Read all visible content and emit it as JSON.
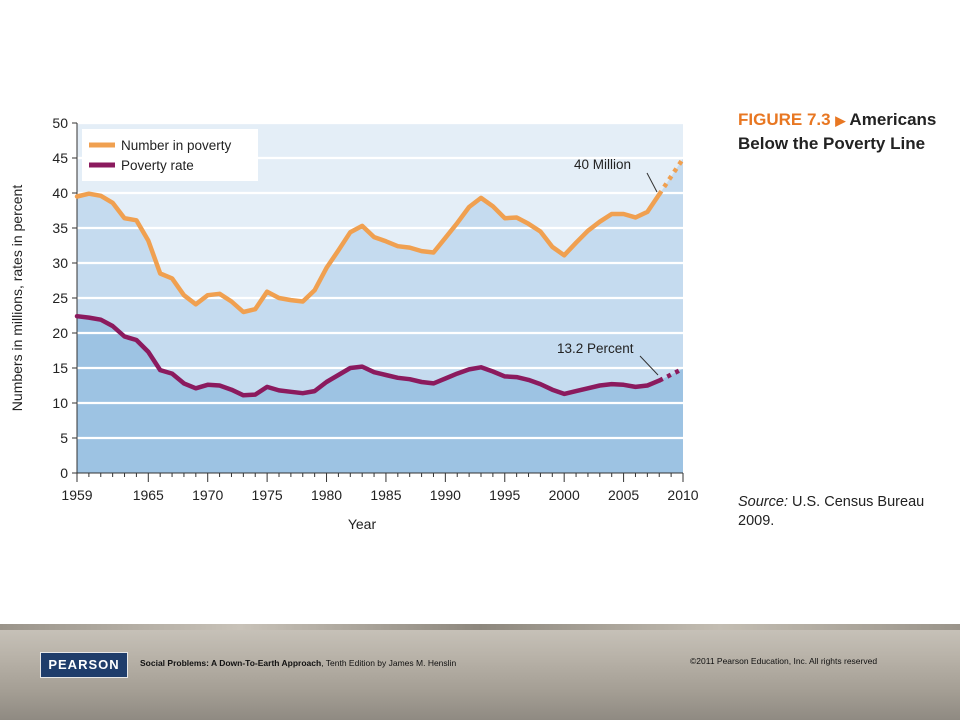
{
  "figure": {
    "number": "FIGURE 7.3",
    "arrow": "▶",
    "title": "Americans Below the Poverty Line",
    "source_label": "Source:",
    "source_text": "U.S. Census Bureau 2009."
  },
  "footer": {
    "logo": "PEARSON",
    "book_title": "Social Problems: A Down-To-Earth Approach",
    "book_rest": ", Tenth Edition by James M. Henslin",
    "copyright": "©2011 Pearson Education, Inc.  All rights reserved"
  },
  "chart_data": {
    "type": "line",
    "xlabel": "Year",
    "ylabel": "Numbers in millions, rates in percent",
    "xlim": [
      1959,
      2010
    ],
    "ylim": [
      0,
      50
    ],
    "x_ticks": [
      1959,
      1965,
      1970,
      1975,
      1980,
      1985,
      1990,
      1995,
      2000,
      2005,
      2010
    ],
    "y_ticks": [
      0,
      5,
      10,
      15,
      20,
      25,
      30,
      35,
      40,
      45,
      50
    ],
    "legend_position": "top-left",
    "colors": {
      "number": "#f0a050",
      "rate": "#8b1a5e",
      "plot_bg_top": "#e4eef7",
      "area_number": "#c5dbef",
      "area_rate": "#9dc3e3",
      "grid": "#ffffff"
    },
    "series": [
      {
        "name": "Number in poverty",
        "x": [
          1959,
          1960,
          1961,
          1962,
          1963,
          1964,
          1965,
          1966,
          1967,
          1968,
          1969,
          1970,
          1971,
          1972,
          1973,
          1974,
          1975,
          1976,
          1977,
          1978,
          1979,
          1980,
          1981,
          1982,
          1983,
          1984,
          1985,
          1986,
          1987,
          1988,
          1989,
          1990,
          1991,
          1992,
          1993,
          1994,
          1995,
          1996,
          1997,
          1998,
          1999,
          2000,
          2001,
          2002,
          2003,
          2004,
          2005,
          2006,
          2007,
          2008
        ],
        "y": [
          39.5,
          39.9,
          39.6,
          38.6,
          36.4,
          36.1,
          33.2,
          28.5,
          27.8,
          25.4,
          24.1,
          25.4,
          25.6,
          24.5,
          23.0,
          23.4,
          25.9,
          25.0,
          24.7,
          24.5,
          26.1,
          29.3,
          31.8,
          34.4,
          35.3,
          33.7,
          33.1,
          32.4,
          32.2,
          31.7,
          31.5,
          33.6,
          35.7,
          38.0,
          39.3,
          38.1,
          36.4,
          36.5,
          35.6,
          34.5,
          32.3,
          31.1,
          32.9,
          34.6,
          35.9,
          37.0,
          37.0,
          36.5,
          37.3,
          39.8
        ],
        "projected": {
          "x": [
            2008,
            2010
          ],
          "y": [
            39.8,
            44.9
          ]
        },
        "annotation": "40 Million"
      },
      {
        "name": "Poverty rate",
        "x": [
          1959,
          1960,
          1961,
          1962,
          1963,
          1964,
          1965,
          1966,
          1967,
          1968,
          1969,
          1970,
          1971,
          1972,
          1973,
          1974,
          1975,
          1976,
          1977,
          1978,
          1979,
          1980,
          1981,
          1982,
          1983,
          1984,
          1985,
          1986,
          1987,
          1988,
          1989,
          1990,
          1991,
          1992,
          1993,
          1994,
          1995,
          1996,
          1997,
          1998,
          1999,
          2000,
          2001,
          2002,
          2003,
          2004,
          2005,
          2006,
          2007,
          2008
        ],
        "y": [
          22.4,
          22.2,
          21.9,
          21.0,
          19.5,
          19.0,
          17.3,
          14.7,
          14.2,
          12.8,
          12.1,
          12.6,
          12.5,
          11.9,
          11.1,
          11.2,
          12.3,
          11.8,
          11.6,
          11.4,
          11.7,
          13.0,
          14.0,
          15.0,
          15.2,
          14.4,
          14.0,
          13.6,
          13.4,
          13.0,
          12.8,
          13.5,
          14.2,
          14.8,
          15.1,
          14.5,
          13.8,
          13.7,
          13.3,
          12.7,
          11.9,
          11.3,
          11.7,
          12.1,
          12.5,
          12.7,
          12.6,
          12.3,
          12.5,
          13.2
        ],
        "projected": {
          "x": [
            2008,
            2010
          ],
          "y": [
            13.2,
            14.9
          ]
        },
        "annotation": "13.2 Percent"
      }
    ]
  }
}
